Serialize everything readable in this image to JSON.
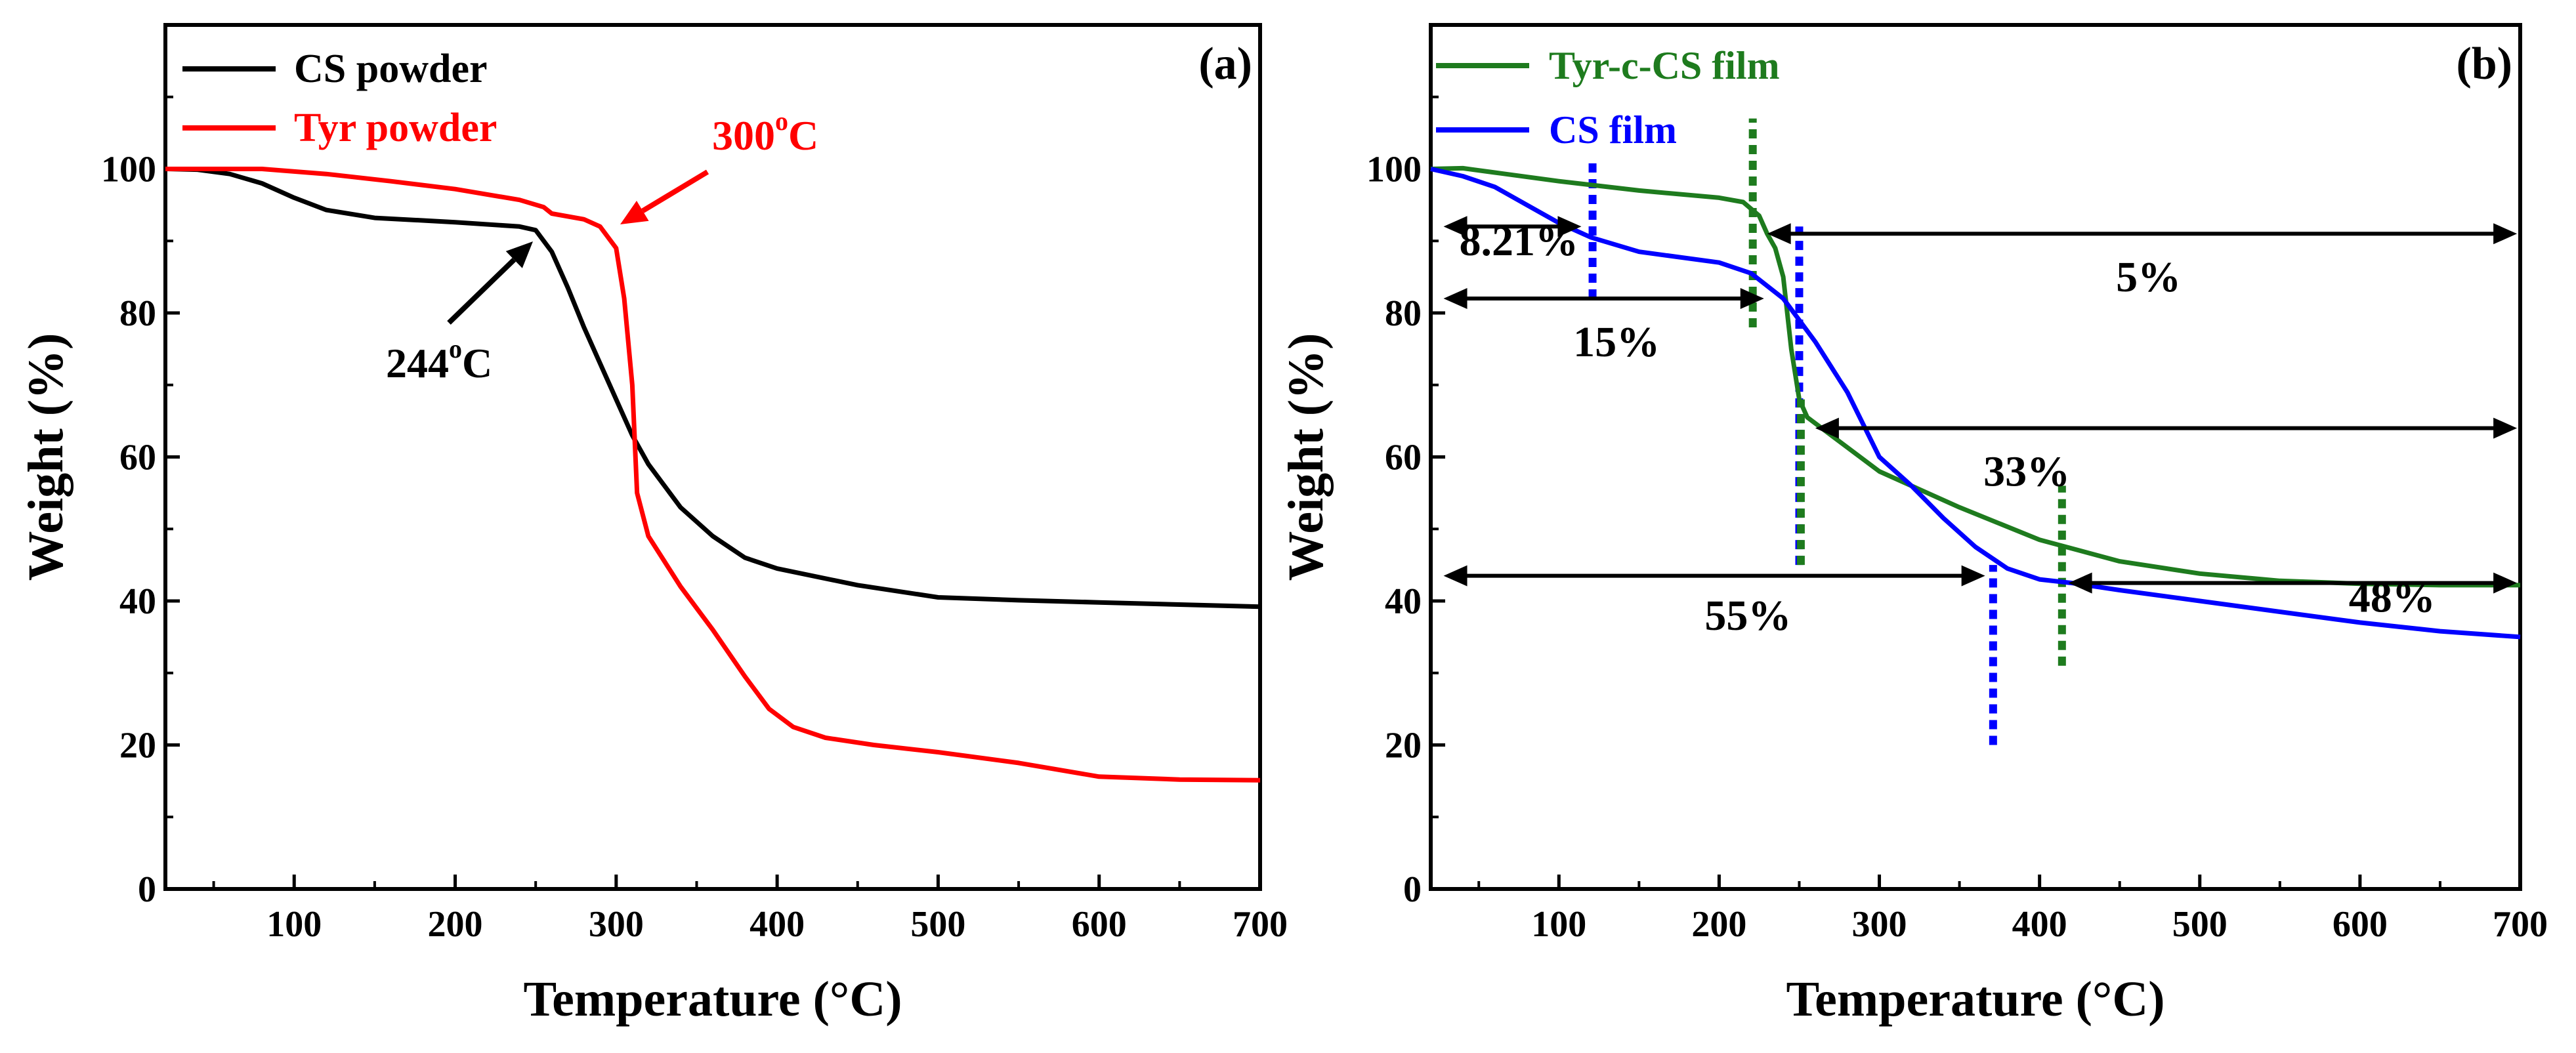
{
  "chart_data": [
    {
      "id": "a",
      "type": "line",
      "panel_label": "(a)",
      "xlabel": "Temperature (°C)",
      "ylabel": "Weight (%)",
      "xlim": [
        20,
        700
      ],
      "ylim": [
        0,
        120
      ],
      "xticks": [
        100,
        200,
        300,
        400,
        500,
        600,
        700
      ],
      "yticks": [
        0,
        20,
        40,
        60,
        80,
        100
      ],
      "legend_position": "top-left",
      "series": [
        {
          "name": "CS powder",
          "color": "#000000",
          "points": [
            [
              20,
              100
            ],
            [
              40,
              99.9
            ],
            [
              60,
              99.3
            ],
            [
              80,
              98
            ],
            [
              100,
              96
            ],
            [
              120,
              94.3
            ],
            [
              150,
              93.2
            ],
            [
              200,
              92.6
            ],
            [
              240,
              92.0
            ],
            [
              250,
              91.5
            ],
            [
              260,
              88.5
            ],
            [
              270,
              83.5
            ],
            [
              280,
              78
            ],
            [
              290,
              73
            ],
            [
              300,
              68
            ],
            [
              310,
              63
            ],
            [
              320,
              59
            ],
            [
              340,
              53
            ],
            [
              360,
              49
            ],
            [
              380,
              46
            ],
            [
              400,
              44.5
            ],
            [
              450,
              42.2
            ],
            [
              500,
              40.5
            ],
            [
              550,
              40.1
            ],
            [
              600,
              39.8
            ],
            [
              700,
              39.2
            ]
          ]
        },
        {
          "name": "Tyr powder",
          "color": "#ff0000",
          "points": [
            [
              20,
              100
            ],
            [
              80,
              100
            ],
            [
              120,
              99.3
            ],
            [
              160,
              98.3
            ],
            [
              200,
              97.2
            ],
            [
              240,
              95.7
            ],
            [
              255,
              94.7
            ],
            [
              260,
              93.8
            ],
            [
              280,
              93
            ],
            [
              290,
              92
            ],
            [
              300,
              89
            ],
            [
              305,
              82
            ],
            [
              310,
              70
            ],
            [
              313,
              55
            ],
            [
              320,
              49
            ],
            [
              340,
              42
            ],
            [
              360,
              36
            ],
            [
              380,
              29.5
            ],
            [
              395,
              25
            ],
            [
              410,
              22.5
            ],
            [
              430,
              21
            ],
            [
              460,
              20
            ],
            [
              500,
              19
            ],
            [
              550,
              17.5
            ],
            [
              600,
              15.6
            ],
            [
              650,
              15.2
            ],
            [
              700,
              15.1
            ]
          ]
        }
      ],
      "annotations": [
        {
          "label_parts": [
            "244",
            "o",
            "C"
          ],
          "color": "#000000"
        },
        {
          "label_parts": [
            "300",
            "o",
            "C"
          ],
          "color": "#ff0000"
        }
      ]
    },
    {
      "id": "b",
      "type": "line",
      "panel_label": "(b)",
      "xlabel": "Temperature (°C)",
      "ylabel": "Weight (%)",
      "xlim": [
        20,
        700
      ],
      "ylim": [
        0,
        120
      ],
      "xticks": [
        100,
        200,
        300,
        400,
        500,
        600,
        700
      ],
      "yticks": [
        0,
        20,
        40,
        60,
        80,
        100
      ],
      "legend_position": "top-left",
      "series": [
        {
          "name": "Tyr-c-CS film",
          "color": "#1e7b1e",
          "points": [
            [
              20,
              100
            ],
            [
              40,
              100.1
            ],
            [
              60,
              99.5
            ],
            [
              100,
              98.3
            ],
            [
              150,
              97
            ],
            [
              200,
              96
            ],
            [
              215,
              95.4
            ],
            [
              225,
              93.5
            ],
            [
              230,
              91
            ],
            [
              235,
              89
            ],
            [
              240,
              85
            ],
            [
              245,
              75
            ],
            [
              250,
              68
            ],
            [
              255,
              65.5
            ],
            [
              270,
              63
            ],
            [
              300,
              58
            ],
            [
              350,
              53
            ],
            [
              400,
              48.5
            ],
            [
              450,
              45.5
            ],
            [
              500,
              43.8
            ],
            [
              550,
              42.8
            ],
            [
              600,
              42.4
            ],
            [
              650,
              42.2
            ],
            [
              700,
              42.2
            ]
          ]
        },
        {
          "name": "CS film",
          "color": "#0000ff",
          "points": [
            [
              20,
              100
            ],
            [
              40,
              99
            ],
            [
              60,
              97.5
            ],
            [
              80,
              95
            ],
            [
              100,
              92.5
            ],
            [
              120,
              90.5
            ],
            [
              150,
              88.5
            ],
            [
              200,
              87
            ],
            [
              220,
              85.5
            ],
            [
              240,
              82
            ],
            [
              260,
              76
            ],
            [
              280,
              69
            ],
            [
              300,
              60
            ],
            [
              320,
              56
            ],
            [
              340,
              51.5
            ],
            [
              360,
              47.5
            ],
            [
              380,
              44.5
            ],
            [
              400,
              43
            ],
            [
              420,
              42.5
            ],
            [
              450,
              41.5
            ],
            [
              500,
              40
            ],
            [
              550,
              38.5
            ],
            [
              600,
              37
            ],
            [
              650,
              35.8
            ],
            [
              700,
              35
            ]
          ]
        }
      ],
      "guides": [
        {
          "x": 121,
          "y_from": 82,
          "y_to": 101,
          "color": "#0000ff"
        },
        {
          "x": 221,
          "y_from": 78,
          "y_to": 107,
          "color": "#1e7b1e"
        },
        {
          "x": 250,
          "y_from": 45,
          "y_to": 92,
          "color": "#0000ff"
        },
        {
          "x": 251,
          "y_from": 45,
          "y_to": 68,
          "color": "#1e7b1e"
        },
        {
          "x": 371,
          "y_from": 20,
          "y_to": 45,
          "color": "#0000ff"
        },
        {
          "x": 414,
          "y_from": 31,
          "y_to": 56,
          "color": "#1e7b1e"
        }
      ],
      "arrows": [
        {
          "x1": 28,
          "x2": 114,
          "y": 92,
          "label": "8.21%",
          "label_x": 75,
          "label_y": 88
        },
        {
          "x1": 28,
          "x2": 228,
          "y": 82,
          "label": "15%",
          "label_x": 136,
          "label_y": 74
        },
        {
          "x1": 230,
          "x2": 698,
          "y": 91,
          "label": "5%",
          "label_x": 468,
          "label_y": 83
        },
        {
          "x1": 260,
          "x2": 698,
          "y": 64,
          "label": "33%",
          "label_x": 392,
          "label_y": 56
        },
        {
          "x1": 28,
          "x2": 366,
          "y": 43.5,
          "label": "55%",
          "label_x": 218,
          "label_y": 36
        },
        {
          "x1": 418,
          "x2": 698,
          "y": 42.5,
          "label": "48%",
          "label_x": 620,
          "label_y": 38.5
        }
      ]
    }
  ]
}
